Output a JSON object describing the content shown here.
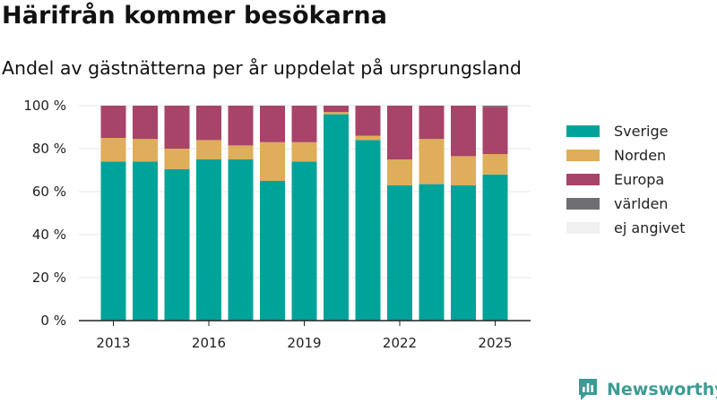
{
  "title": "Härifrån kommer besökarna",
  "subtitle": "Andel av gästnätterna per år uppdelat på ursprungsland",
  "brand": {
    "name": "Newsworthy",
    "icon": "newsworthy-logo-icon"
  },
  "colors": {
    "Sverige": "#00a39a",
    "Norden": "#deae5a",
    "Europa": "#a8436a",
    "världen": "#6e6e73",
    "ej angivet": "#f0f0f0",
    "axis": "#222222",
    "grid": "#e6e6e6",
    "brand": "#3b9c94"
  },
  "chart_data": {
    "type": "bar",
    "stacked": true,
    "categories": [
      "2013",
      "2014",
      "2015",
      "2016",
      "2017",
      "2018",
      "2019",
      "2020",
      "2021",
      "2022",
      "2023",
      "2024",
      "2025"
    ],
    "series": [
      {
        "name": "Sverige",
        "values": [
          74,
          74,
          70.5,
          75,
          75,
          65,
          74,
          96,
          84,
          63,
          63.5,
          63,
          68
        ]
      },
      {
        "name": "Norden",
        "values": [
          11,
          10.5,
          9.5,
          9,
          6.5,
          18,
          9,
          1,
          2,
          12,
          21,
          13.5,
          9.5
        ]
      },
      {
        "name": "Europa",
        "values": [
          15,
          15.5,
          20,
          16,
          18.5,
          17,
          17,
          3,
          14,
          25,
          15.5,
          23.5,
          22
        ]
      },
      {
        "name": "världen",
        "values": [
          0,
          0,
          0,
          0,
          0,
          0,
          0,
          0,
          0,
          0,
          0,
          0,
          0.5
        ]
      },
      {
        "name": "ej angivet",
        "values": [
          0,
          0,
          0,
          0,
          0,
          0,
          0,
          0,
          0,
          0,
          0,
          0,
          0
        ]
      }
    ],
    "xticks": [
      "2013",
      "2016",
      "2019",
      "2022",
      "2025"
    ],
    "yticks": [
      "0 %",
      "20 %",
      "40 %",
      "60 %",
      "80 %",
      "100 %"
    ],
    "ylim": [
      0,
      100
    ],
    "grid": true,
    "legend": "right",
    "xlabel": "",
    "ylabel": ""
  }
}
